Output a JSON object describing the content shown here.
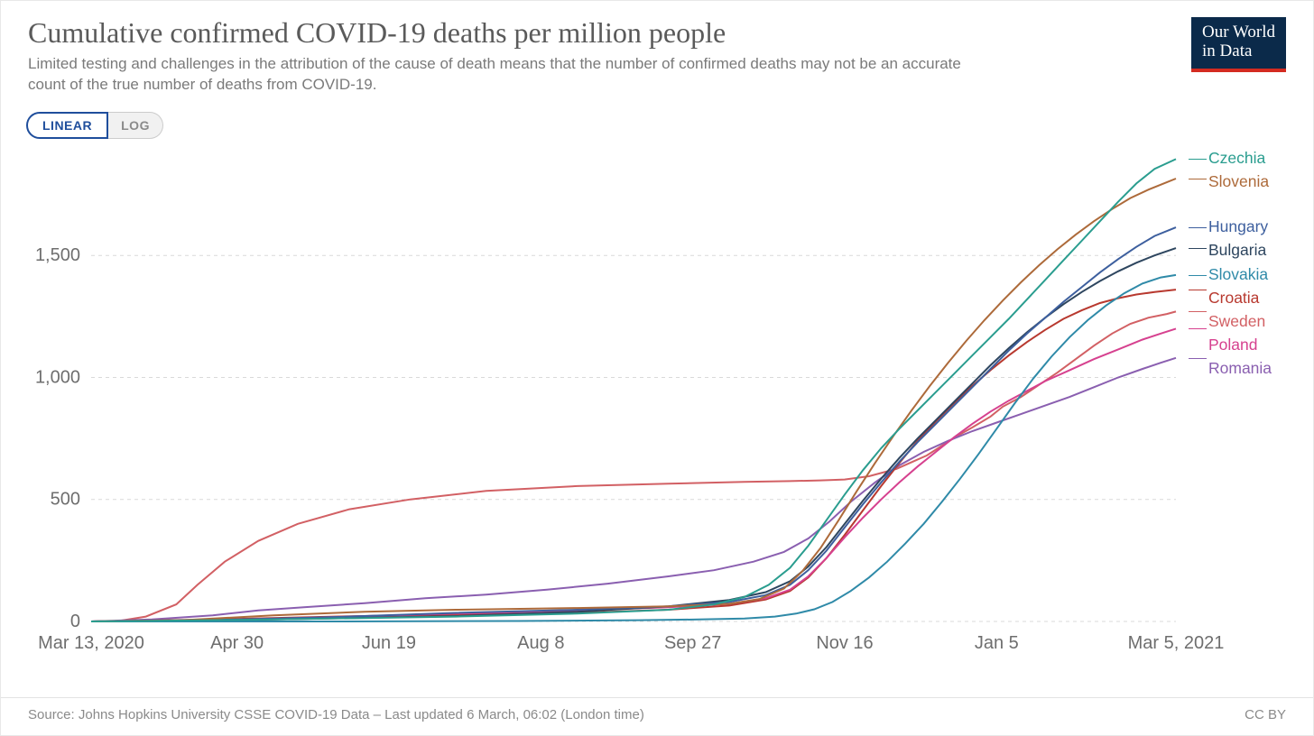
{
  "title": "Cumulative confirmed COVID-19 deaths per million people",
  "subtitle": "Limited testing and challenges in the attribution of the cause of death means that the number of confirmed deaths may not be an accurate count of the true number of deaths from COVID-19.",
  "logo_line1": "Our World",
  "logo_line2": "in Data",
  "scale_toggle": {
    "linear": "LINEAR",
    "log": "LOG",
    "active": "linear"
  },
  "footer_source": "Source: Johns Hopkins University CSSE COVID-19 Data – Last updated 6 March, 06:02 (London time)",
  "footer_license": "CC BY",
  "chart": {
    "type": "line",
    "background_color": "#ffffff",
    "grid_color": "#d9d9d9",
    "axis_text_color": "#6e6e6e",
    "axis_fontsize": 20,
    "line_width": 2,
    "x_domain": [
      0,
      357
    ],
    "y_domain": [
      0,
      1900
    ],
    "y_ticks": [
      {
        "v": 0,
        "label": "0"
      },
      {
        "v": 500,
        "label": "500"
      },
      {
        "v": 1000,
        "label": "1,000"
      },
      {
        "v": 1500,
        "label": "1,500"
      }
    ],
    "x_ticks": [
      {
        "v": 0,
        "label": "Mar 13, 2020",
        "anchor": "start"
      },
      {
        "v": 48,
        "label": "Apr 30"
      },
      {
        "v": 98,
        "label": "Jun 19"
      },
      {
        "v": 148,
        "label": "Aug 8"
      },
      {
        "v": 198,
        "label": "Sep 27"
      },
      {
        "v": 248,
        "label": "Nov 16"
      },
      {
        "v": 298,
        "label": "Jan 5"
      },
      {
        "v": 357,
        "label": "Mar 5, 2021",
        "anchor": "end"
      }
    ],
    "series": [
      {
        "name": "Sweden",
        "color": "#d26064",
        "points": [
          [
            0,
            0
          ],
          [
            9,
            2
          ],
          [
            18,
            20
          ],
          [
            28,
            70
          ],
          [
            35,
            150
          ],
          [
            44,
            245
          ],
          [
            55,
            330
          ],
          [
            68,
            400
          ],
          [
            85,
            460
          ],
          [
            105,
            500
          ],
          [
            130,
            535
          ],
          [
            160,
            555
          ],
          [
            190,
            565
          ],
          [
            215,
            572
          ],
          [
            230,
            575
          ],
          [
            240,
            578
          ],
          [
            248,
            582
          ],
          [
            256,
            595
          ],
          [
            265,
            625
          ],
          [
            275,
            680
          ],
          [
            285,
            760
          ],
          [
            290,
            795
          ],
          [
            296,
            840
          ],
          [
            300,
            880
          ],
          [
            306,
            920
          ],
          [
            312,
            970
          ],
          [
            318,
            1020
          ],
          [
            324,
            1075
          ],
          [
            330,
            1130
          ],
          [
            336,
            1180
          ],
          [
            342,
            1220
          ],
          [
            348,
            1245
          ],
          [
            354,
            1260
          ],
          [
            357,
            1270
          ]
        ]
      },
      {
        "name": "Romania",
        "color": "#8a5fb0",
        "points": [
          [
            0,
            0
          ],
          [
            20,
            8
          ],
          [
            40,
            25
          ],
          [
            55,
            45
          ],
          [
            70,
            58
          ],
          [
            90,
            75
          ],
          [
            110,
            95
          ],
          [
            130,
            110
          ],
          [
            150,
            130
          ],
          [
            170,
            155
          ],
          [
            190,
            185
          ],
          [
            205,
            210
          ],
          [
            218,
            245
          ],
          [
            228,
            285
          ],
          [
            236,
            340
          ],
          [
            243,
            410
          ],
          [
            250,
            490
          ],
          [
            258,
            570
          ],
          [
            266,
            640
          ],
          [
            274,
            695
          ],
          [
            282,
            740
          ],
          [
            290,
            780
          ],
          [
            298,
            815
          ],
          [
            306,
            850
          ],
          [
            314,
            885
          ],
          [
            322,
            920
          ],
          [
            330,
            960
          ],
          [
            338,
            1000
          ],
          [
            346,
            1035
          ],
          [
            352,
            1060
          ],
          [
            357,
            1080
          ]
        ]
      },
      {
        "name": "Croatia",
        "color": "#b8392f",
        "points": [
          [
            0,
            0
          ],
          [
            40,
            8
          ],
          [
            80,
            20
          ],
          [
            120,
            28
          ],
          [
            160,
            35
          ],
          [
            190,
            48
          ],
          [
            210,
            65
          ],
          [
            222,
            90
          ],
          [
            230,
            125
          ],
          [
            236,
            180
          ],
          [
            242,
            260
          ],
          [
            248,
            355
          ],
          [
            254,
            455
          ],
          [
            260,
            555
          ],
          [
            266,
            650
          ],
          [
            272,
            740
          ],
          [
            278,
            820
          ],
          [
            284,
            895
          ],
          [
            290,
            965
          ],
          [
            296,
            1030
          ],
          [
            302,
            1090
          ],
          [
            308,
            1145
          ],
          [
            314,
            1195
          ],
          [
            320,
            1240
          ],
          [
            326,
            1275
          ],
          [
            332,
            1305
          ],
          [
            338,
            1325
          ],
          [
            344,
            1340
          ],
          [
            350,
            1350
          ],
          [
            357,
            1360
          ]
        ]
      },
      {
        "name": "Poland",
        "color": "#d6418f",
        "points": [
          [
            0,
            0
          ],
          [
            40,
            5
          ],
          [
            80,
            18
          ],
          [
            120,
            32
          ],
          [
            160,
            45
          ],
          [
            190,
            58
          ],
          [
            210,
            72
          ],
          [
            222,
            95
          ],
          [
            230,
            130
          ],
          [
            236,
            185
          ],
          [
            242,
            260
          ],
          [
            248,
            345
          ],
          [
            254,
            425
          ],
          [
            260,
            500
          ],
          [
            266,
            570
          ],
          [
            272,
            635
          ],
          [
            278,
            695
          ],
          [
            284,
            755
          ],
          [
            290,
            810
          ],
          [
            296,
            860
          ],
          [
            302,
            905
          ],
          [
            308,
            945
          ],
          [
            314,
            985
          ],
          [
            322,
            1030
          ],
          [
            330,
            1075
          ],
          [
            338,
            1115
          ],
          [
            346,
            1155
          ],
          [
            352,
            1180
          ],
          [
            357,
            1200
          ]
        ]
      },
      {
        "name": "Bulgaria",
        "color": "#2e465f",
        "points": [
          [
            0,
            0
          ],
          [
            60,
            8
          ],
          [
            120,
            22
          ],
          [
            160,
            40
          ],
          [
            190,
            62
          ],
          [
            210,
            88
          ],
          [
            222,
            120
          ],
          [
            230,
            165
          ],
          [
            236,
            225
          ],
          [
            242,
            305
          ],
          [
            248,
            400
          ],
          [
            254,
            495
          ],
          [
            260,
            585
          ],
          [
            266,
            670
          ],
          [
            272,
            750
          ],
          [
            278,
            825
          ],
          [
            284,
            900
          ],
          [
            290,
            975
          ],
          [
            296,
            1050
          ],
          [
            302,
            1120
          ],
          [
            308,
            1185
          ],
          [
            314,
            1245
          ],
          [
            320,
            1300
          ],
          [
            326,
            1350
          ],
          [
            332,
            1395
          ],
          [
            338,
            1435
          ],
          [
            344,
            1470
          ],
          [
            350,
            1500
          ],
          [
            357,
            1530
          ]
        ]
      },
      {
        "name": "Hungary",
        "color": "#3d5f9e",
        "points": [
          [
            0,
            0
          ],
          [
            40,
            6
          ],
          [
            80,
            18
          ],
          [
            120,
            35
          ],
          [
            160,
            48
          ],
          [
            190,
            62
          ],
          [
            210,
            80
          ],
          [
            222,
            108
          ],
          [
            230,
            150
          ],
          [
            236,
            210
          ],
          [
            242,
            290
          ],
          [
            248,
            385
          ],
          [
            254,
            480
          ],
          [
            260,
            570
          ],
          [
            266,
            655
          ],
          [
            272,
            735
          ],
          [
            278,
            810
          ],
          [
            284,
            885
          ],
          [
            290,
            960
          ],
          [
            296,
            1035
          ],
          [
            302,
            1110
          ],
          [
            308,
            1180
          ],
          [
            314,
            1245
          ],
          [
            320,
            1310
          ],
          [
            326,
            1370
          ],
          [
            332,
            1430
          ],
          [
            338,
            1485
          ],
          [
            344,
            1535
          ],
          [
            350,
            1580
          ],
          [
            357,
            1615
          ]
        ]
      },
      {
        "name": "Slovakia",
        "color": "#2f8aa8",
        "points": [
          [
            0,
            0
          ],
          [
            80,
            0
          ],
          [
            140,
            2
          ],
          [
            180,
            5
          ],
          [
            200,
            8
          ],
          [
            215,
            12
          ],
          [
            225,
            20
          ],
          [
            232,
            32
          ],
          [
            238,
            50
          ],
          [
            244,
            80
          ],
          [
            250,
            125
          ],
          [
            256,
            180
          ],
          [
            262,
            245
          ],
          [
            268,
            320
          ],
          [
            274,
            400
          ],
          [
            280,
            490
          ],
          [
            286,
            585
          ],
          [
            292,
            685
          ],
          [
            298,
            790
          ],
          [
            304,
            895
          ],
          [
            310,
            995
          ],
          [
            316,
            1085
          ],
          [
            322,
            1165
          ],
          [
            328,
            1235
          ],
          [
            334,
            1295
          ],
          [
            340,
            1345
          ],
          [
            346,
            1385
          ],
          [
            352,
            1410
          ],
          [
            357,
            1420
          ]
        ]
      },
      {
        "name": "Slovenia",
        "color": "#ad6a3a",
        "points": [
          [
            0,
            0
          ],
          [
            30,
            5
          ],
          [
            60,
            25
          ],
          [
            90,
            40
          ],
          [
            120,
            48
          ],
          [
            160,
            55
          ],
          [
            190,
            62
          ],
          [
            210,
            72
          ],
          [
            220,
            92
          ],
          [
            228,
            135
          ],
          [
            234,
            205
          ],
          [
            240,
            300
          ],
          [
            246,
            415
          ],
          [
            252,
            535
          ],
          [
            258,
            650
          ],
          [
            264,
            760
          ],
          [
            270,
            865
          ],
          [
            276,
            965
          ],
          [
            282,
            1060
          ],
          [
            288,
            1150
          ],
          [
            294,
            1235
          ],
          [
            300,
            1315
          ],
          [
            306,
            1390
          ],
          [
            312,
            1460
          ],
          [
            318,
            1525
          ],
          [
            324,
            1585
          ],
          [
            330,
            1640
          ],
          [
            336,
            1690
          ],
          [
            342,
            1735
          ],
          [
            348,
            1770
          ],
          [
            354,
            1800
          ],
          [
            357,
            1815
          ]
        ]
      },
      {
        "name": "Czechia",
        "color": "#2a9d8f",
        "points": [
          [
            0,
            0
          ],
          [
            60,
            8
          ],
          [
            120,
            20
          ],
          [
            160,
            32
          ],
          [
            190,
            48
          ],
          [
            205,
            70
          ],
          [
            215,
            100
          ],
          [
            223,
            150
          ],
          [
            230,
            220
          ],
          [
            236,
            310
          ],
          [
            242,
            415
          ],
          [
            248,
            520
          ],
          [
            254,
            620
          ],
          [
            260,
            710
          ],
          [
            266,
            790
          ],
          [
            272,
            865
          ],
          [
            278,
            940
          ],
          [
            284,
            1015
          ],
          [
            290,
            1090
          ],
          [
            296,
            1165
          ],
          [
            302,
            1240
          ],
          [
            308,
            1320
          ],
          [
            314,
            1400
          ],
          [
            320,
            1480
          ],
          [
            326,
            1560
          ],
          [
            332,
            1640
          ],
          [
            338,
            1720
          ],
          [
            344,
            1795
          ],
          [
            350,
            1855
          ],
          [
            357,
            1895
          ]
        ]
      }
    ],
    "legend_order": [
      {
        "name": "Czechia",
        "color": "#2a9d8f",
        "y": 1895
      },
      {
        "name": "Slovenia",
        "color": "#ad6a3a",
        "y": 1815
      },
      {
        "name": "Hungary",
        "color": "#3d5f9e",
        "y": 1615
      },
      {
        "name": "Bulgaria",
        "color": "#2e465f",
        "y": 1530
      },
      {
        "name": "Slovakia",
        "color": "#2f8aa8",
        "y": 1420
      },
      {
        "name": "Croatia",
        "color": "#b8392f",
        "y": 1360
      },
      {
        "name": "Sweden",
        "color": "#d26064",
        "y": 1270
      },
      {
        "name": "Poland",
        "color": "#d6418f",
        "y": 1200
      },
      {
        "name": "Romania",
        "color": "#8a5fb0",
        "y": 1080
      }
    ]
  }
}
